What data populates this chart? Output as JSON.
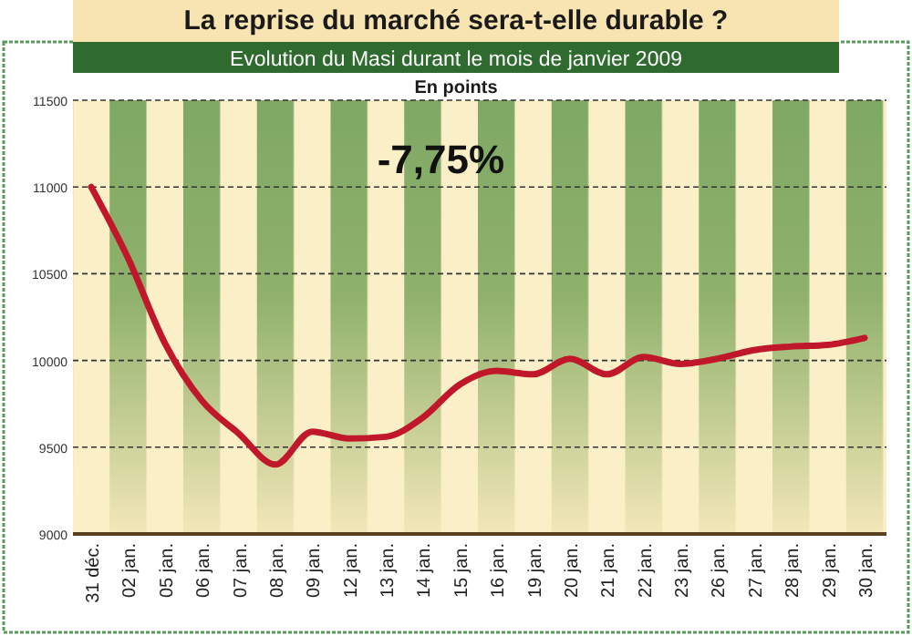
{
  "chart_data": {
    "type": "line",
    "title": "La reprise du marché sera-t-elle durable ?",
    "subtitle": "Evolution du Masi durant le mois de janvier 2009",
    "ylabel": "En points",
    "categories": [
      "31 déc.",
      "02 jan.",
      "05 jan.",
      "06 jan.",
      "07 jan.",
      "08 jan.",
      "09 jan.",
      "12 jan.",
      "13 jan.",
      "14 jan.",
      "15 jan.",
      "16 jan.",
      "19 jan.",
      "20 jan.",
      "21 jan.",
      "22 jan.",
      "23 jan.",
      "26 jan.",
      "27 jan.",
      "28 jan.",
      "29 jan.",
      "30 jan."
    ],
    "series": [
      {
        "color": "#c0182a",
        "values": [
          11000,
          10590,
          10100,
          9770,
          9580,
          9400,
          9590,
          9550,
          9560,
          9670,
          9860,
          9940,
          9920,
          10010,
          9920,
          10020,
          9980,
          10010,
          10060,
          10080,
          10090,
          10130
        ]
      }
    ],
    "ylim": [
      9000,
      11500
    ],
    "yticks": [
      9000,
      9500,
      10000,
      10500,
      11000,
      11500
    ],
    "grid": "y",
    "marker": "none",
    "line_style": "solid",
    "annotations": [
      "-7,75%"
    ]
  }
}
